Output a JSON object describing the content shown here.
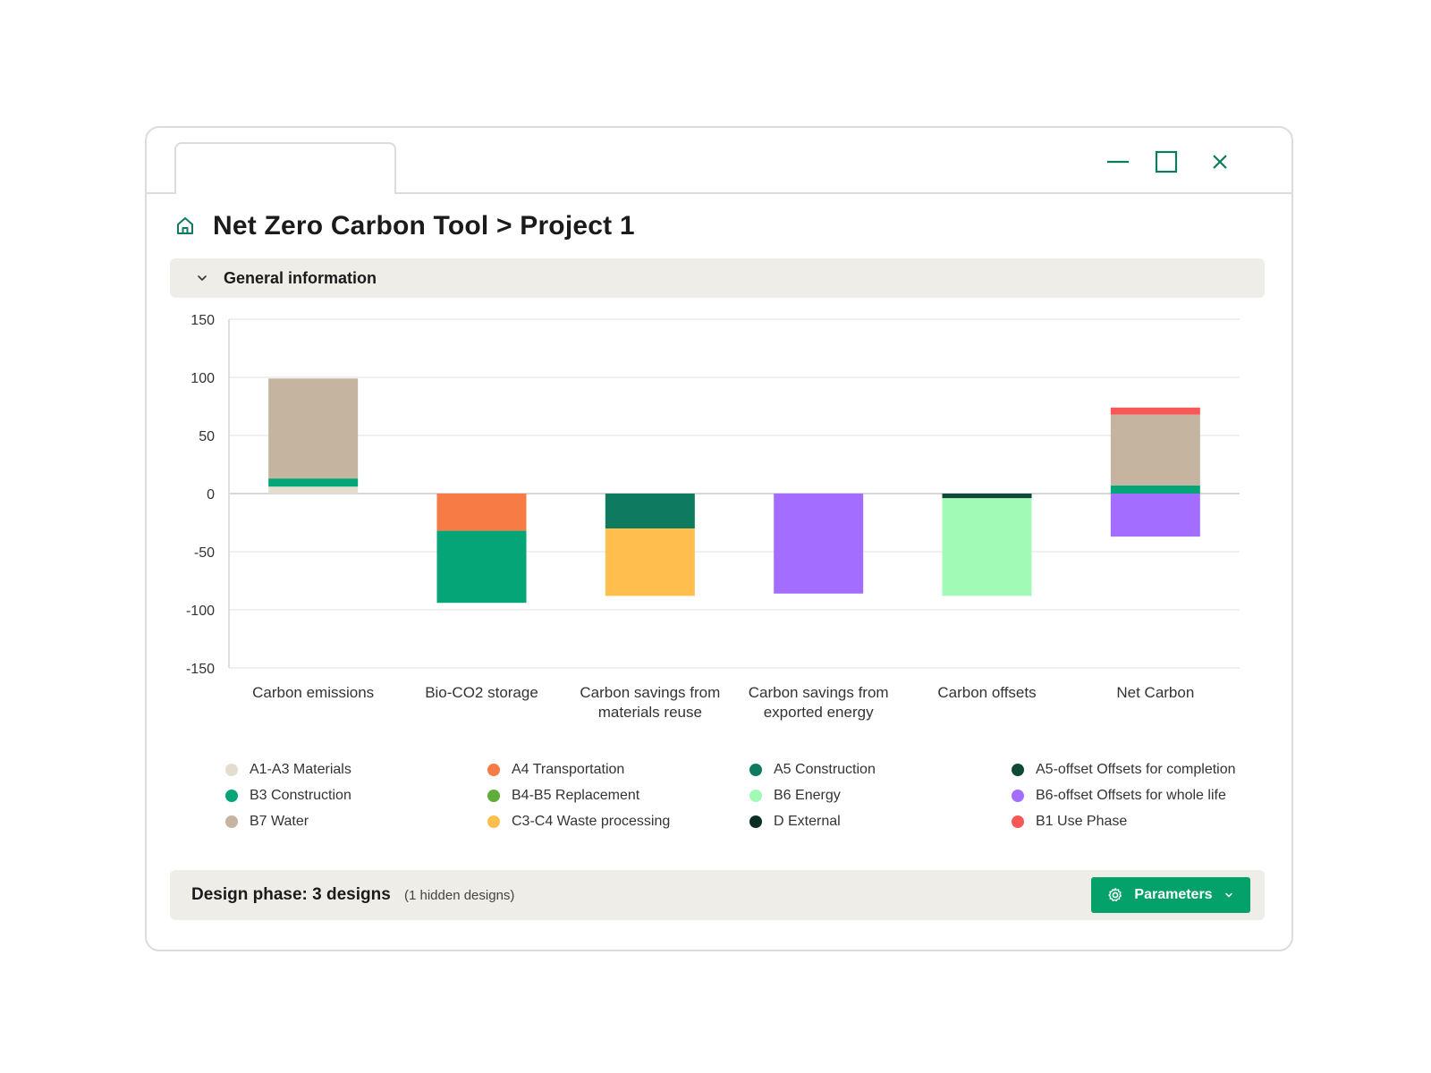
{
  "window": {
    "controls": [
      "minimize-icon",
      "maximize-icon",
      "close-icon"
    ]
  },
  "header": {
    "title": "Net Zero Carbon Tool > Project 1",
    "icon": "home-icon"
  },
  "section": {
    "title": "General information"
  },
  "chart_data": {
    "type": "bar",
    "stacked": true,
    "categories": [
      [
        "Carbon emissions"
      ],
      [
        "Bio-CO2 storage"
      ],
      [
        "Carbon savings from",
        "materials reuse"
      ],
      [
        "Carbon savings from",
        "exported energy"
      ],
      [
        "Carbon offsets"
      ],
      [
        "Net Carbon"
      ]
    ],
    "ylim": [
      -150,
      150
    ],
    "yticks": [
      150,
      100,
      50,
      0,
      -50,
      -100,
      -150
    ],
    "grid": true,
    "legend_position": "bottom",
    "series": [
      {
        "name": "A1-A3 Materials",
        "color": "#e4ddcd",
        "values": [
          6,
          0,
          0,
          0,
          0,
          0
        ]
      },
      {
        "name": "A4 Transportation",
        "color": "#f77b45",
        "values": [
          0,
          -32,
          0,
          0,
          0,
          0
        ]
      },
      {
        "name": "A5 Construction",
        "color": "#0e7a5f",
        "values": [
          0,
          0,
          -30,
          0,
          0,
          0
        ]
      },
      {
        "name": "A5-offset Offsets for completion",
        "color": "#0f4a38",
        "values": [
          0,
          0,
          0,
          0,
          -4,
          0
        ]
      },
      {
        "name": "B3 Construction",
        "color": "#05a578",
        "values": [
          7,
          -62,
          0,
          0,
          0,
          7
        ]
      },
      {
        "name": "B4-B5 Replacement",
        "color": "#5fae3b",
        "values": [
          0,
          0,
          0,
          0,
          0,
          0
        ]
      },
      {
        "name": "B6 Energy",
        "color": "#a1fbb6",
        "values": [
          0,
          0,
          0,
          0,
          -84,
          0
        ]
      },
      {
        "name": "B6-offset Offsets for whole life",
        "color": "#a36eff",
        "values": [
          0,
          0,
          0,
          -86,
          0,
          -37
        ]
      },
      {
        "name": "B7 Water",
        "color": "#c4b4a0",
        "values": [
          86,
          0,
          0,
          0,
          0,
          61
        ]
      },
      {
        "name": "C3-C4 Waste processing",
        "color": "#ffbe4d",
        "values": [
          0,
          0,
          -58,
          0,
          0,
          0
        ]
      },
      {
        "name": "D External",
        "color": "#0b2e25",
        "values": [
          0,
          0,
          0,
          0,
          0,
          0
        ]
      },
      {
        "name": "B1 Use Phase",
        "color": "#f95757",
        "values": [
          0,
          0,
          0,
          0,
          0,
          6
        ]
      }
    ]
  },
  "legend_order": [
    "A1-A3 Materials",
    "A4 Transportation",
    "A5 Construction",
    "A5-offset Offsets for completion",
    "B3 Construction",
    "B4-B5 Replacement",
    "B6 Energy",
    "B6-offset Offsets for whole life",
    "B7 Water",
    "C3-C4 Waste processing",
    "D External",
    "B1 Use Phase"
  ],
  "footer": {
    "phase_title": "Design phase: 3 designs",
    "phase_note": "(1 hidden designs)",
    "parameters_button": "Parameters"
  }
}
